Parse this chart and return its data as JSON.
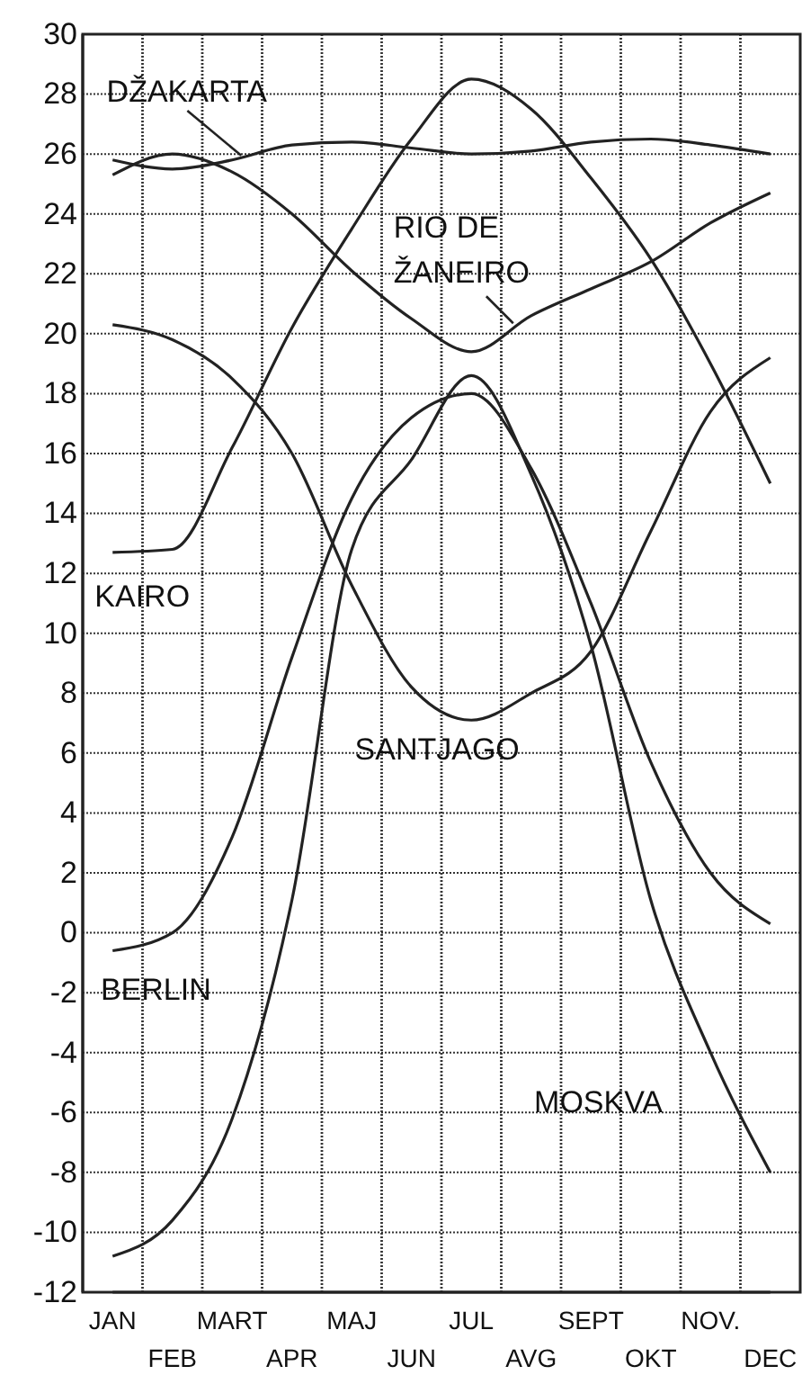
{
  "chart_data": {
    "type": "line",
    "ylim": [
      -12,
      30
    ],
    "categories": [
      "JAN",
      "FEB",
      "MART",
      "APR",
      "MAJ",
      "JUN",
      "JUL",
      "AVG",
      "SEPT",
      "OKT",
      "NOV.",
      "DEC"
    ],
    "yticks": [
      -12,
      -10,
      -8,
      -6,
      -4,
      -2,
      0,
      2,
      4,
      6,
      8,
      10,
      12,
      14,
      16,
      18,
      20,
      22,
      24,
      26,
      28,
      30
    ],
    "grid": true,
    "marker": "none",
    "line_style": "solid",
    "series": [
      {
        "name": "DŽAKARTA",
        "color": "#222222",
        "values": [
          25.8,
          25.5,
          25.8,
          26.3,
          26.4,
          26.2,
          26.0,
          26.1,
          26.4,
          26.5,
          26.3,
          26.0
        ]
      },
      {
        "name": "RIO DE ŽANEIRO",
        "color": "#222222",
        "values": [
          25.3,
          26.0,
          25.4,
          24.0,
          22.1,
          20.5,
          19.4,
          20.6,
          21.5,
          22.4,
          23.7,
          24.7
        ]
      },
      {
        "name": "KAIRO",
        "color": "#222222",
        "values": [
          12.7,
          12.8,
          16.2,
          20.2,
          23.5,
          26.5,
          28.5,
          27.5,
          25.2,
          22.5,
          19.0,
          15.0
        ]
      },
      {
        "name": "SANTJAGO",
        "color": "#222222",
        "values": [
          20.3,
          19.8,
          18.5,
          16.0,
          11.6,
          8.2,
          7.1,
          8.0,
          9.4,
          13.4,
          17.4,
          19.2
        ]
      },
      {
        "name": "BERLIN",
        "color": "#222222",
        "values": [
          -0.6,
          0.0,
          3.2,
          9.2,
          14.5,
          17.2,
          18.0,
          15.5,
          11.0,
          5.7,
          2.0,
          0.3
        ]
      },
      {
        "name": "MOSKVA",
        "color": "#222222",
        "values": [
          -10.8,
          -9.6,
          -6.2,
          1.1,
          12.8,
          15.8,
          18.6,
          15.3,
          9.6,
          1.1,
          -4.0,
          -8.0
        ]
      }
    ]
  }
}
